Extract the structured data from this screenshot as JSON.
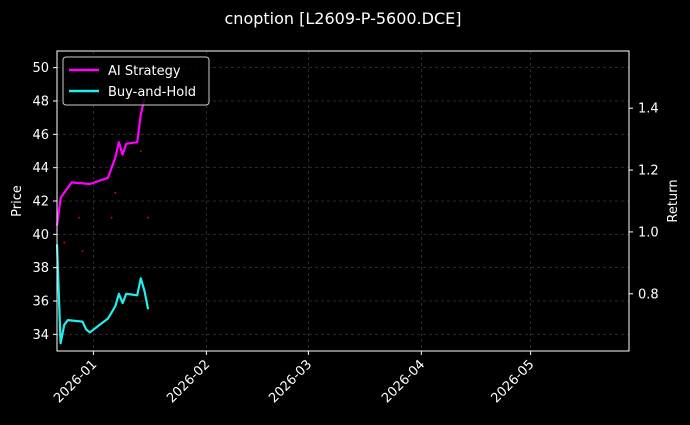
{
  "chart_data": {
    "type": "line",
    "title": "cnoption [L2609-P-5600.DCE]",
    "xlabel": "",
    "ylabel": "Price",
    "y2label": "Return",
    "xlim": [
      "2025-12-22",
      "2026-05-28"
    ],
    "ylim": [
      33.0,
      51.0
    ],
    "y2lim": [
      0.615,
      1.585
    ],
    "grid": true,
    "legend": "top-left",
    "x_ticks": [
      "2026-01",
      "2026-02",
      "2026-03",
      "2026-04",
      "2026-05"
    ],
    "y_ticks": [
      34,
      36,
      38,
      40,
      42,
      44,
      46,
      48,
      50
    ],
    "y2_ticks": [
      0.8,
      1.0,
      1.2,
      1.4
    ],
    "series": [
      {
        "name": "AI Strategy",
        "axis": "right",
        "color": "#ff00ff",
        "points": [
          [
            "2025-12-22",
            1.02
          ],
          [
            "2025-12-23",
            1.11
          ],
          [
            "2025-12-26",
            1.16
          ],
          [
            "2025-12-31",
            1.155
          ],
          [
            "2026-01-05",
            1.175
          ],
          [
            "2026-01-07",
            1.24
          ],
          [
            "2026-01-08",
            1.29
          ],
          [
            "2026-01-09",
            1.25
          ],
          [
            "2026-01-10",
            1.285
          ],
          [
            "2026-01-13",
            1.29
          ],
          [
            "2026-01-14",
            1.38
          ],
          [
            "2026-01-15",
            1.43
          ]
        ]
      },
      {
        "name": "Buy-and-Hold",
        "axis": "right",
        "color": "#22eeee",
        "points": [
          [
            "2025-12-22",
            0.96
          ],
          [
            "2025-12-23",
            0.64
          ],
          [
            "2025-12-24",
            0.7
          ],
          [
            "2025-12-25",
            0.715
          ],
          [
            "2025-12-29",
            0.71
          ],
          [
            "2025-12-30",
            0.685
          ],
          [
            "2025-12-31",
            0.675
          ],
          [
            "2026-01-05",
            0.72
          ],
          [
            "2026-01-07",
            0.76
          ],
          [
            "2026-01-08",
            0.8
          ],
          [
            "2026-01-09",
            0.77
          ],
          [
            "2026-01-10",
            0.8
          ],
          [
            "2026-01-13",
            0.795
          ],
          [
            "2026-01-14",
            0.85
          ],
          [
            "2026-01-15",
            0.81
          ],
          [
            "2026-01-16",
            0.75
          ]
        ]
      }
    ],
    "markers": {
      "color": "#ff0000",
      "points": [
        [
          "2025-12-24",
          39.5
        ],
        [
          "2025-12-28",
          41.0
        ],
        [
          "2025-12-29",
          39.0
        ],
        [
          "2026-01-06",
          41.0
        ],
        [
          "2026-01-07",
          42.5
        ],
        [
          "2026-01-14",
          45.0
        ],
        [
          "2026-01-16",
          41.0
        ]
      ]
    }
  }
}
